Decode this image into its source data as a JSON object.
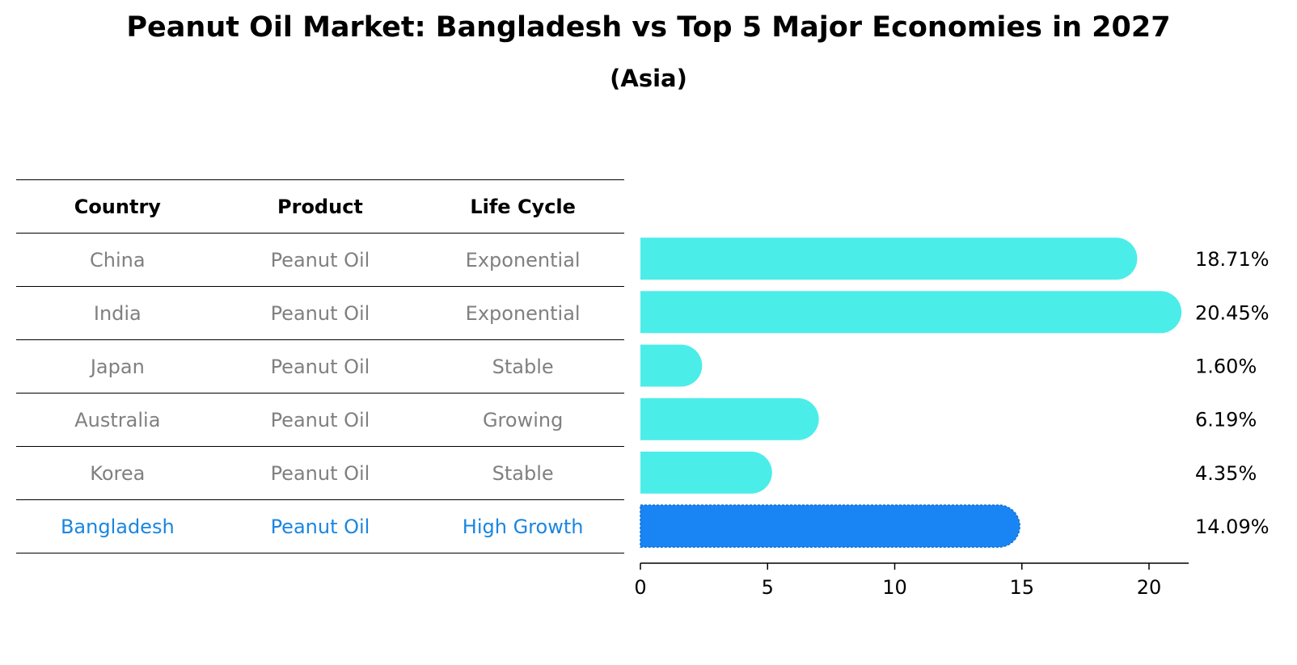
{
  "title": "Peanut Oil Market: Bangladesh vs Top 5 Major Economies in 2027",
  "subtitle": "(Asia)",
  "colors": {
    "bar": "#4bede9",
    "highlight": "#1985f4",
    "highlight_text": "#1a86e0",
    "muted_text": "#808080"
  },
  "table": {
    "headers": [
      "Country",
      "Product",
      "Life Cycle"
    ],
    "rows": [
      [
        "China",
        "Peanut Oil",
        "Exponential"
      ],
      [
        "India",
        "Peanut Oil",
        "Exponential"
      ],
      [
        "Japan",
        "Peanut Oil",
        "Stable"
      ],
      [
        "Australia",
        "Peanut Oil",
        "Growing"
      ],
      [
        "Korea",
        "Peanut Oil",
        "Stable"
      ],
      [
        "Bangladesh",
        "Peanut Oil",
        "High Growth"
      ]
    ],
    "highlight_row": 5
  },
  "chart_data": {
    "type": "bar",
    "orientation": "horizontal",
    "categories": [
      "China",
      "India",
      "Japan",
      "Australia",
      "Korea",
      "Bangladesh"
    ],
    "values": [
      18.71,
      20.45,
      1.6,
      6.19,
      4.35,
      14.09
    ],
    "labels": [
      "18.71%",
      "20.45%",
      "1.60%",
      "6.19%",
      "4.35%",
      "14.09%"
    ],
    "highlight": "Bangladesh",
    "xticks": [
      0,
      5,
      10,
      15,
      20
    ],
    "xlim": [
      0,
      21.5
    ],
    "title": "Peanut Oil Market: Bangladesh vs Top 5 Major Economies in 2027",
    "subtitle": "(Asia)"
  }
}
